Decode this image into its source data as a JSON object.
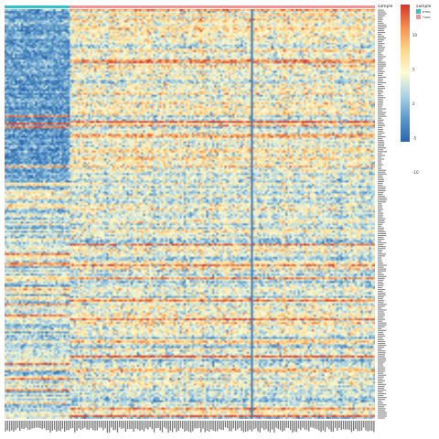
{
  "chart_data": {
    "type": "heatmap",
    "title": "",
    "xlabel": "",
    "ylabel": "",
    "annotation": {
      "title": "sample",
      "groups": [
        {
          "name": "DTRN",
          "color": "#2ec4cf",
          "count": 32
        },
        {
          "name": "TGRN",
          "color": "#f39393",
          "count": 150
        }
      ]
    },
    "color_scale": {
      "ticks": [
        "10",
        "5",
        "0",
        "-5",
        "-10"
      ],
      "range": [
        -10,
        10
      ],
      "colors": [
        "#2b64ad",
        "#5a98c8",
        "#a9d1e6",
        "#fcfcd2",
        "#fdd68a",
        "#f59052",
        "#d43528"
      ]
    },
    "row_count": 220,
    "column_count": 182,
    "row_labels_text": "gene",
    "column_labels_text": "sample"
  }
}
